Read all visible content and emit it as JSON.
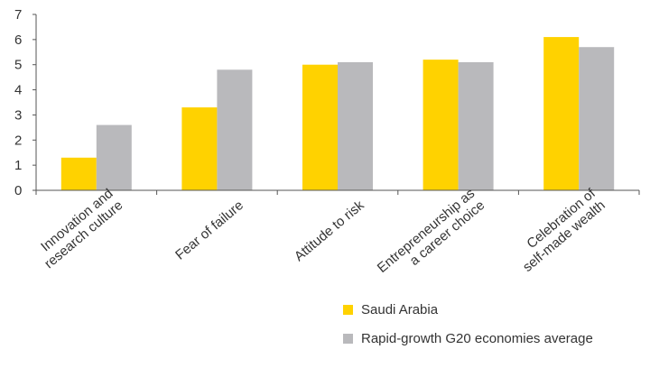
{
  "chart_data": {
    "type": "bar",
    "categories": [
      "Innovation and research culture",
      "Fear of failure",
      "Attitude to risk",
      "Entrepreneurship as a career choice",
      "Celebration of self-made wealth"
    ],
    "category_label_lines": [
      [
        "Innovation and",
        "research culture"
      ],
      [
        "Fear of failure"
      ],
      [
        "Attitude to risk"
      ],
      [
        "Entrepreneurship as",
        "a career choice"
      ],
      [
        "Celebration of",
        "self-made wealth"
      ]
    ],
    "series": [
      {
        "name": "Saudi Arabia",
        "values": [
          1.3,
          3.3,
          5.0,
          5.2,
          6.1
        ],
        "color": "#FFD200"
      },
      {
        "name": "Rapid-growth G20 economies average",
        "values": [
          2.6,
          4.8,
          5.1,
          5.1,
          5.7
        ],
        "color": "#B9B9BC"
      }
    ],
    "yticks": [
      0,
      1,
      2,
      3,
      4,
      5,
      6,
      7
    ],
    "ylim": [
      0,
      7
    ],
    "title": "",
    "xlabel": "",
    "ylabel": "",
    "grid": false,
    "legend_position": "bottom-right"
  }
}
